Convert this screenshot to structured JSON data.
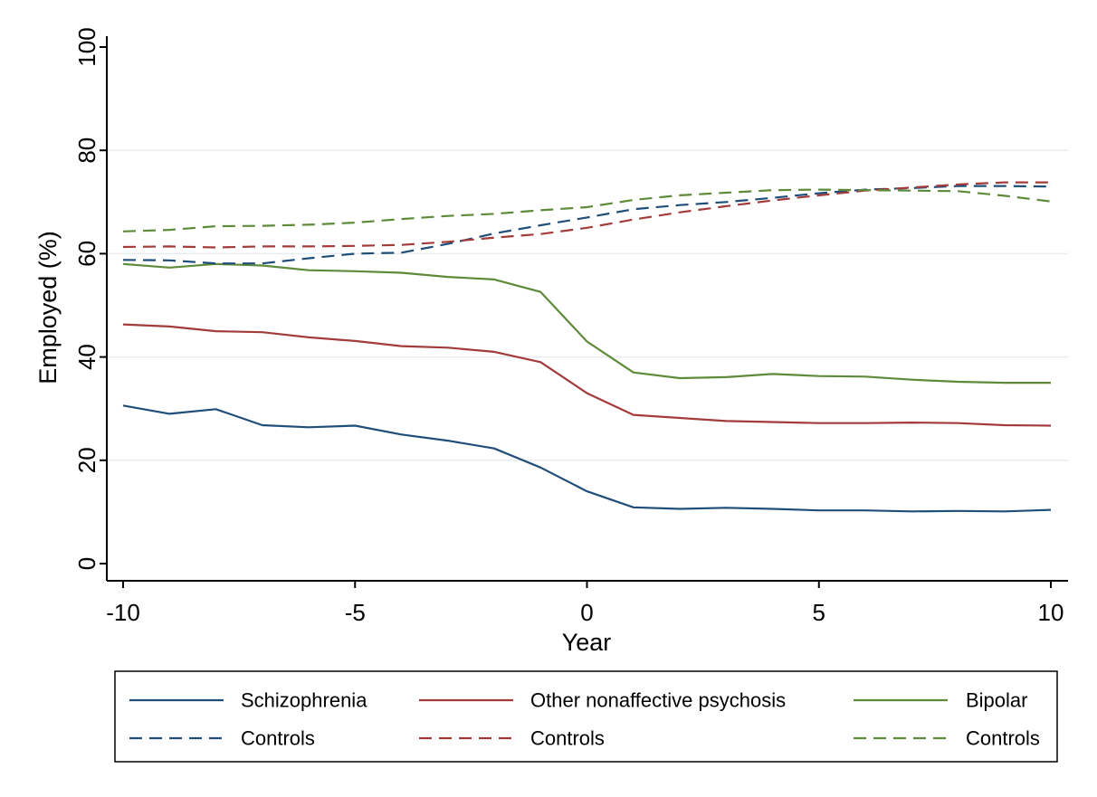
{
  "chart_data": {
    "type": "line",
    "title": "",
    "xlabel": "Year",
    "ylabel": "Employed (%)",
    "xlim": [
      -10,
      10
    ],
    "ylim": [
      0,
      100
    ],
    "xticks": [
      -10,
      -5,
      0,
      5,
      10
    ],
    "yticks": [
      0,
      20,
      40,
      60,
      80,
      100
    ],
    "grid": "horizontal",
    "legend_position": "bottom",
    "x": [
      -10,
      -9,
      -8,
      -7,
      -6,
      -5,
      -4,
      -3,
      -2,
      -1,
      0,
      1,
      2,
      3,
      4,
      5,
      6,
      7,
      8,
      9,
      10
    ],
    "series": [
      {
        "name": "Schizophrenia",
        "color": "#1f4e79",
        "dash": "solid",
        "values": [
          30.6,
          29.0,
          29.9,
          26.8,
          26.4,
          26.7,
          25.0,
          23.8,
          22.3,
          18.6,
          14.0,
          10.9,
          10.6,
          10.8,
          10.6,
          10.3,
          10.3,
          10.1,
          10.2,
          10.1,
          10.4
        ]
      },
      {
        "name": "Other nonaffective psychosis",
        "color": "#a33b3b",
        "dash": "solid",
        "values": [
          46.3,
          45.9,
          45.0,
          44.8,
          43.8,
          43.1,
          42.1,
          41.8,
          41.0,
          39.0,
          33.0,
          28.8,
          28.2,
          27.6,
          27.4,
          27.2,
          27.2,
          27.3,
          27.2,
          26.8,
          26.7
        ]
      },
      {
        "name": "Bipolar",
        "color": "#5d8b3a",
        "dash": "solid",
        "values": [
          58.0,
          57.3,
          58.0,
          57.7,
          56.8,
          56.6,
          56.3,
          55.5,
          55.0,
          52.6,
          43.0,
          37.0,
          35.9,
          36.1,
          36.7,
          36.3,
          36.2,
          35.6,
          35.2,
          35.0,
          35.0
        ]
      },
      {
        "name": "Controls",
        "color": "#1f4e79",
        "dash": "dashed",
        "values": [
          58.8,
          58.7,
          58.1,
          58.1,
          59.1,
          60.0,
          60.2,
          61.9,
          63.9,
          65.5,
          67.0,
          68.6,
          69.4,
          70.0,
          70.8,
          71.7,
          72.4,
          72.7,
          73.1,
          73.1,
          73.0
        ]
      },
      {
        "name": "Controls",
        "color": "#a33b3b",
        "dash": "dashed",
        "values": [
          61.3,
          61.4,
          61.2,
          61.4,
          61.4,
          61.5,
          61.7,
          62.3,
          63.1,
          63.8,
          65.0,
          66.6,
          68.0,
          69.2,
          70.3,
          71.3,
          72.2,
          72.8,
          73.4,
          73.8,
          73.8
        ]
      },
      {
        "name": "Controls",
        "color": "#5d8b3a",
        "dash": "dashed",
        "values": [
          64.3,
          64.6,
          65.3,
          65.4,
          65.6,
          66.0,
          66.7,
          67.3,
          67.7,
          68.4,
          69.0,
          70.4,
          71.3,
          71.8,
          72.3,
          72.4,
          72.3,
          72.2,
          72.1,
          71.2,
          70.1
        ]
      }
    ]
  }
}
